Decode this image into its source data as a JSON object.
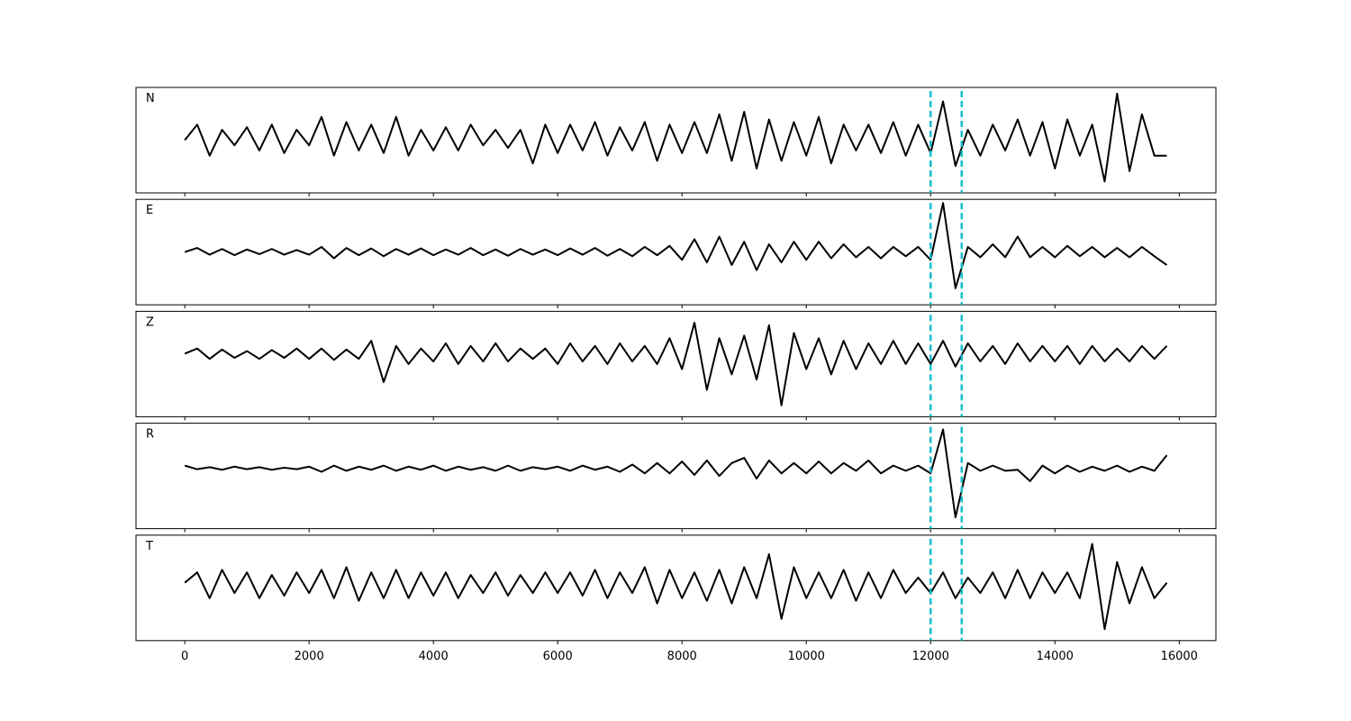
{
  "chart_data": {
    "type": "line",
    "x": [
      0,
      200,
      400,
      600,
      800,
      1000,
      1200,
      1400,
      1600,
      1800,
      2000,
      2200,
      2400,
      2600,
      2800,
      3000,
      3200,
      3400,
      3600,
      3800,
      4000,
      4200,
      4400,
      4600,
      4800,
      5000,
      5200,
      5400,
      5600,
      5800,
      6000,
      6200,
      6400,
      6600,
      6800,
      7000,
      7200,
      7400,
      7600,
      7800,
      8000,
      8200,
      8400,
      8600,
      8800,
      9000,
      9200,
      9400,
      9600,
      9800,
      10000,
      10200,
      10400,
      10600,
      10800,
      11000,
      11200,
      11400,
      11600,
      11800,
      12000,
      12200,
      12400,
      12600,
      12800,
      13000,
      13200,
      13400,
      13600,
      13800,
      14000,
      14200,
      14400,
      14600,
      14800,
      15000,
      15200,
      15400,
      15600,
      15800
    ],
    "series": [
      {
        "name": "N",
        "color": "#000000",
        "values": [
          0.0,
          0.3,
          -0.3,
          0.2,
          -0.1,
          0.25,
          -0.2,
          0.3,
          -0.25,
          0.2,
          -0.1,
          0.45,
          -0.3,
          0.35,
          -0.2,
          0.3,
          -0.25,
          0.45,
          -0.3,
          0.2,
          -0.2,
          0.25,
          -0.2,
          0.3,
          -0.1,
          0.2,
          -0.15,
          0.2,
          -0.45,
          0.3,
          -0.25,
          0.3,
          -0.2,
          0.35,
          -0.3,
          0.25,
          -0.2,
          0.35,
          -0.4,
          0.3,
          -0.25,
          0.35,
          -0.25,
          0.5,
          -0.4,
          0.55,
          -0.55,
          0.4,
          -0.4,
          0.35,
          -0.3,
          0.45,
          -0.45,
          0.3,
          -0.2,
          0.3,
          -0.25,
          0.35,
          -0.3,
          0.3,
          -0.25,
          0.75,
          -0.5,
          0.2,
          -0.3,
          0.3,
          -0.2,
          0.4,
          -0.3,
          0.35,
          -0.55,
          0.4,
          -0.3,
          0.3,
          -0.8,
          0.9,
          -0.6,
          0.5,
          -0.3,
          -0.3
        ]
      },
      {
        "name": "E",
        "color": "#000000",
        "values": [
          0.0,
          0.08,
          -0.05,
          0.06,
          -0.06,
          0.05,
          -0.04,
          0.06,
          -0.05,
          0.04,
          -0.05,
          0.1,
          -0.12,
          0.08,
          -0.06,
          0.07,
          -0.08,
          0.06,
          -0.05,
          0.07,
          -0.06,
          0.05,
          -0.05,
          0.08,
          -0.06,
          0.05,
          -0.07,
          0.06,
          -0.05,
          0.05,
          -0.06,
          0.07,
          -0.05,
          0.08,
          -0.07,
          0.06,
          -0.08,
          0.1,
          -0.06,
          0.12,
          -0.15,
          0.25,
          -0.2,
          0.3,
          -0.25,
          0.2,
          -0.35,
          0.15,
          -0.2,
          0.2,
          -0.15,
          0.2,
          -0.12,
          0.15,
          -0.1,
          0.1,
          -0.12,
          0.1,
          -0.08,
          0.1,
          -0.15,
          0.95,
          -0.7,
          0.1,
          -0.1,
          0.15,
          -0.1,
          0.3,
          -0.1,
          0.1,
          -0.1,
          0.12,
          -0.08,
          0.1,
          -0.1,
          0.08,
          -0.1,
          0.1,
          -0.08,
          -0.25
        ]
      },
      {
        "name": "Z",
        "color": "#000000",
        "values": [
          0.2,
          0.3,
          0.1,
          0.28,
          0.12,
          0.25,
          0.1,
          0.27,
          0.12,
          0.3,
          0.1,
          0.3,
          0.08,
          0.28,
          0.1,
          0.45,
          -0.35,
          0.35,
          0.0,
          0.3,
          0.05,
          0.4,
          0.0,
          0.35,
          0.05,
          0.4,
          0.05,
          0.3,
          0.1,
          0.3,
          0.0,
          0.4,
          0.05,
          0.35,
          0.0,
          0.4,
          0.05,
          0.35,
          0.0,
          0.5,
          -0.1,
          0.8,
          -0.5,
          0.5,
          -0.2,
          0.55,
          -0.3,
          0.75,
          -0.8,
          0.6,
          -0.1,
          0.5,
          -0.2,
          0.45,
          -0.1,
          0.4,
          0.0,
          0.45,
          0.0,
          0.4,
          0.0,
          0.45,
          -0.05,
          0.4,
          0.05,
          0.35,
          0.0,
          0.4,
          0.05,
          0.35,
          0.05,
          0.35,
          0.0,
          0.35,
          0.05,
          0.3,
          0.05,
          0.35,
          0.1,
          0.35
        ]
      },
      {
        "name": "R",
        "color": "#000000",
        "values": [
          0.2,
          0.13,
          0.17,
          0.12,
          0.18,
          0.13,
          0.17,
          0.12,
          0.16,
          0.13,
          0.18,
          0.08,
          0.2,
          0.1,
          0.18,
          0.12,
          0.2,
          0.1,
          0.18,
          0.12,
          0.2,
          0.1,
          0.18,
          0.12,
          0.17,
          0.1,
          0.2,
          0.1,
          0.17,
          0.13,
          0.18,
          0.1,
          0.2,
          0.12,
          0.18,
          0.08,
          0.22,
          0.05,
          0.25,
          0.05,
          0.28,
          0.02,
          0.3,
          0.0,
          0.25,
          0.35,
          -0.05,
          0.3,
          0.05,
          0.25,
          0.05,
          0.28,
          0.05,
          0.25,
          0.1,
          0.3,
          0.05,
          0.2,
          0.1,
          0.2,
          0.05,
          0.9,
          -0.8,
          0.25,
          0.1,
          0.2,
          0.1,
          0.12,
          -0.1,
          0.2,
          0.05,
          0.2,
          0.08,
          0.18,
          0.1,
          0.2,
          0.08,
          0.18,
          0.1,
          0.4
        ]
      },
      {
        "name": "T",
        "color": "#000000",
        "values": [
          0.1,
          0.3,
          -0.2,
          0.35,
          -0.1,
          0.3,
          -0.2,
          0.25,
          -0.15,
          0.3,
          -0.1,
          0.35,
          -0.2,
          0.4,
          -0.25,
          0.3,
          -0.2,
          0.35,
          -0.2,
          0.3,
          -0.15,
          0.3,
          -0.2,
          0.25,
          -0.1,
          0.3,
          -0.15,
          0.25,
          -0.1,
          0.3,
          -0.1,
          0.3,
          -0.15,
          0.35,
          -0.2,
          0.3,
          -0.1,
          0.4,
          -0.3,
          0.35,
          -0.2,
          0.3,
          -0.25,
          0.35,
          -0.3,
          0.4,
          -0.2,
          0.65,
          -0.6,
          0.4,
          -0.2,
          0.3,
          -0.2,
          0.35,
          -0.25,
          0.3,
          -0.2,
          0.35,
          -0.1,
          0.2,
          -0.1,
          0.3,
          -0.2,
          0.2,
          -0.1,
          0.3,
          -0.2,
          0.35,
          -0.2,
          0.3,
          -0.1,
          0.3,
          -0.2,
          0.85,
          -0.8,
          0.5,
          -0.3,
          0.4,
          -0.2,
          0.1
        ]
      }
    ],
    "xlim": [
      -785,
      16590
    ],
    "xticks": [
      0,
      2000,
      4000,
      6000,
      8000,
      10000,
      12000,
      14000,
      16000
    ],
    "ylim": [
      -1,
      1
    ],
    "vlines": [
      12000,
      12500
    ],
    "vline_color": "#17becf",
    "grid": false
  }
}
